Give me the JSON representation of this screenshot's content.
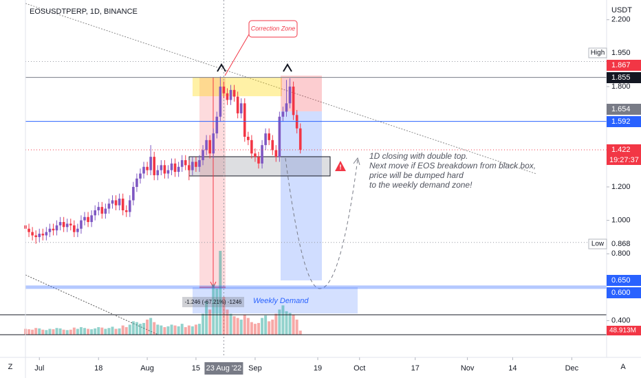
{
  "chart_data": {
    "type": "candlestick",
    "title": "EOSUSDTPERP, 1D, BINANCE",
    "y_unit": "USDT",
    "x": [
      "2022-06-27",
      "2022-06-28",
      "2022-06-29",
      "2022-06-30",
      "2022-07-01",
      "2022-07-02",
      "2022-07-03",
      "2022-07-04",
      "2022-07-05",
      "2022-07-06",
      "2022-07-07",
      "2022-07-08",
      "2022-07-09",
      "2022-07-10",
      "2022-07-11",
      "2022-07-12",
      "2022-07-13",
      "2022-07-14",
      "2022-07-15",
      "2022-07-16",
      "2022-07-17",
      "2022-07-18",
      "2022-07-19",
      "2022-07-20",
      "2022-07-21",
      "2022-07-22",
      "2022-07-23",
      "2022-07-24",
      "2022-07-25",
      "2022-07-26",
      "2022-07-27",
      "2022-07-28",
      "2022-07-29",
      "2022-07-30",
      "2022-07-31",
      "2022-08-01",
      "2022-08-02",
      "2022-08-03",
      "2022-08-04",
      "2022-08-05",
      "2022-08-06",
      "2022-08-07",
      "2022-08-08",
      "2022-08-09",
      "2022-08-10",
      "2022-08-11",
      "2022-08-12",
      "2022-08-13",
      "2022-08-14",
      "2022-08-15",
      "2022-08-16",
      "2022-08-17",
      "2022-08-18",
      "2022-08-19",
      "2022-08-20",
      "2022-08-21",
      "2022-08-22",
      "2022-08-23",
      "2022-08-24",
      "2022-08-25",
      "2022-08-26",
      "2022-08-27",
      "2022-08-28",
      "2022-08-29",
      "2022-08-30",
      "2022-08-31",
      "2022-09-01",
      "2022-09-02",
      "2022-09-03",
      "2022-09-04",
      "2022-09-05",
      "2022-09-06",
      "2022-09-07",
      "2022-09-08",
      "2022-09-09",
      "2022-09-10",
      "2022-09-11",
      "2022-09-12",
      "2022-09-13",
      "2022-09-14"
    ],
    "open": [
      0.97,
      0.95,
      0.93,
      0.91,
      0.9,
      0.92,
      0.91,
      0.93,
      0.95,
      0.94,
      0.97,
      0.99,
      0.96,
      0.98,
      0.97,
      0.93,
      0.95,
      1.0,
      1.02,
      0.99,
      1.03,
      1.06,
      1.08,
      1.04,
      1.07,
      1.1,
      1.12,
      1.09,
      1.13,
      1.06,
      1.05,
      1.12,
      1.2,
      1.25,
      1.28,
      1.32,
      1.3,
      1.38,
      1.27,
      1.3,
      1.33,
      1.28,
      1.3,
      1.34,
      1.29,
      1.32,
      1.36,
      1.33,
      1.3,
      1.35,
      1.32,
      1.36,
      1.42,
      1.48,
      1.4,
      1.52,
      1.62,
      1.8,
      1.76,
      1.72,
      1.78,
      1.74,
      1.64,
      1.7,
      1.5,
      1.48,
      1.4,
      1.38,
      1.34,
      1.45,
      1.52,
      1.48,
      1.42,
      1.38,
      1.62,
      1.65,
      1.7,
      1.8,
      1.63,
      1.55
    ],
    "high": [
      1.0,
      0.98,
      0.96,
      0.94,
      0.95,
      0.95,
      0.96,
      0.98,
      0.98,
      1.0,
      1.02,
      1.02,
      1.01,
      1.01,
      1.0,
      0.98,
      1.03,
      1.05,
      1.05,
      1.06,
      1.09,
      1.11,
      1.11,
      1.1,
      1.13,
      1.15,
      1.15,
      1.16,
      1.16,
      1.09,
      1.15,
      1.23,
      1.28,
      1.31,
      1.35,
      1.35,
      1.45,
      1.41,
      1.33,
      1.36,
      1.36,
      1.33,
      1.37,
      1.37,
      1.35,
      1.39,
      1.39,
      1.36,
      1.38,
      1.38,
      1.39,
      1.45,
      1.51,
      1.51,
      1.55,
      1.65,
      1.86,
      1.83,
      1.79,
      1.81,
      1.81,
      1.77,
      1.73,
      1.73,
      1.53,
      1.51,
      1.43,
      1.41,
      1.48,
      1.55,
      1.55,
      1.51,
      1.45,
      1.65,
      1.68,
      1.84,
      1.85,
      1.83,
      1.66,
      1.58
    ],
    "low": [
      0.92,
      0.9,
      0.88,
      0.86,
      0.87,
      0.88,
      0.88,
      0.9,
      0.91,
      0.91,
      0.94,
      0.93,
      0.93,
      0.94,
      0.9,
      0.9,
      0.92,
      0.97,
      0.96,
      0.96,
      1.0,
      1.03,
      1.01,
      1.01,
      1.04,
      1.07,
      1.06,
      1.06,
      1.03,
      1.02,
      1.02,
      1.09,
      1.17,
      1.22,
      1.25,
      1.27,
      1.27,
      1.24,
      1.24,
      1.27,
      1.25,
      1.25,
      1.27,
      1.26,
      1.26,
      1.29,
      1.3,
      1.24,
      1.27,
      1.29,
      1.29,
      1.33,
      1.39,
      1.37,
      1.37,
      1.49,
      1.59,
      1.73,
      1.69,
      1.69,
      1.71,
      1.61,
      1.61,
      1.47,
      1.45,
      1.37,
      1.35,
      1.31,
      1.31,
      1.42,
      1.45,
      1.39,
      1.35,
      1.35,
      1.59,
      1.62,
      1.67,
      1.6,
      1.52,
      1.4
    ],
    "close": [
      0.95,
      0.93,
      0.91,
      0.9,
      0.92,
      0.91,
      0.93,
      0.95,
      0.94,
      0.97,
      0.99,
      0.96,
      0.98,
      0.97,
      0.93,
      0.95,
      1.0,
      1.02,
      0.99,
      1.03,
      1.06,
      1.08,
      1.04,
      1.07,
      1.1,
      1.12,
      1.09,
      1.13,
      1.06,
      1.05,
      1.12,
      1.2,
      1.25,
      1.28,
      1.32,
      1.3,
      1.38,
      1.27,
      1.3,
      1.33,
      1.28,
      1.3,
      1.34,
      1.29,
      1.32,
      1.36,
      1.33,
      1.3,
      1.35,
      1.32,
      1.36,
      1.42,
      1.48,
      1.4,
      1.52,
      1.62,
      1.8,
      1.76,
      1.72,
      1.78,
      1.74,
      1.64,
      1.7,
      1.5,
      1.48,
      1.4,
      1.38,
      1.34,
      1.45,
      1.52,
      1.48,
      1.42,
      1.38,
      1.62,
      1.65,
      1.7,
      1.8,
      1.63,
      1.55,
      1.422
    ],
    "volume": [
      70,
      65,
      60,
      80,
      75,
      60,
      55,
      70,
      65,
      80,
      75,
      60,
      55,
      60,
      85,
      70,
      90,
      80,
      70,
      65,
      75,
      90,
      85,
      70,
      80,
      95,
      70,
      75,
      110,
      90,
      120,
      160,
      150,
      130,
      140,
      180,
      200,
      150,
      120,
      110,
      90,
      100,
      120,
      110,
      100,
      130,
      90,
      110,
      100,
      120,
      130,
      250,
      400,
      300,
      600,
      550,
      1000,
      450,
      300,
      250,
      220,
      200,
      180,
      240,
      200,
      150,
      130,
      140,
      200,
      230,
      160,
      180,
      250,
      300,
      350,
      280,
      260,
      240,
      180,
      48.913
    ],
    "volume_label": "48.913M",
    "up_color": "#7e57c2",
    "down_color": "#f23645",
    "volume_up_color": "#26a69a",
    "volume_down_color": "#ef5350",
    "xlim": [
      "2022-06-27",
      "2022-12-11"
    ],
    "xticks": [
      {
        "value": "2022-07-01",
        "label": "Jul"
      },
      {
        "value": "2022-07-18",
        "label": "18"
      },
      {
        "value": "2022-08-01",
        "label": "Aug"
      },
      {
        "value": "2022-08-15",
        "label": "15"
      },
      {
        "value": "2022-08-23",
        "label": "23 Aug '22"
      },
      {
        "value": "2022-09-01",
        "label": "Sep"
      },
      {
        "value": "2022-09-19",
        "label": "19"
      },
      {
        "value": "2022-10-01",
        "label": "Oct"
      },
      {
        "value": "2022-10-17",
        "label": "17"
      },
      {
        "value": "2022-11-01",
        "label": "Nov"
      },
      {
        "value": "2022-11-14",
        "label": "14"
      },
      {
        "value": "2022-12-01",
        "label": "Dec"
      }
    ],
    "ylim": [
      0.316,
      2.318
    ],
    "yticks": [
      {
        "value": 2.2,
        "label": "2.200"
      },
      {
        "value": 1.8,
        "label": "1.800"
      },
      {
        "value": 1.2,
        "label": "1.200"
      },
      {
        "value": 1.0,
        "label": "1.000"
      },
      {
        "value": 0.8,
        "label": "0.800"
      },
      {
        "value": 0.4,
        "label": "0.400"
      }
    ],
    "grid": false,
    "high_level": {
      "name": "High",
      "value": 1.95,
      "label": "1.950"
    },
    "low_level": {
      "name": "Low",
      "value": 0.868,
      "label": "0.868"
    },
    "price_tags": [
      {
        "value": 1.867,
        "label": "1.867",
        "color": "#f23645"
      },
      {
        "value": 1.855,
        "label": "1.855",
        "color": "#131722"
      },
      {
        "value": 1.654,
        "label": "1.654",
        "color": "#787b86"
      },
      {
        "value": 1.592,
        "label": "1.592",
        "color": "#2962ff"
      },
      {
        "value": 1.422,
        "label": "1.422",
        "color": "#f23645"
      },
      {
        "value": 0.65,
        "label": "0.650",
        "color": "#2962ff"
      },
      {
        "value": 0.6,
        "label": "0.600",
        "color": "#2962ff"
      }
    ],
    "countdown": "19:27:37",
    "callout": "Correction Zone",
    "note": [
      "1D closing with double top.",
      "Next move if EOS breakdown from black box,",
      "price will be dumped hard",
      "to the weekly demand zone!"
    ],
    "demand_label": "Weekly Demand",
    "measure_label": "-1.246 (-67.21%) -1246",
    "toolbar": [
      "Z",
      "A"
    ]
  }
}
